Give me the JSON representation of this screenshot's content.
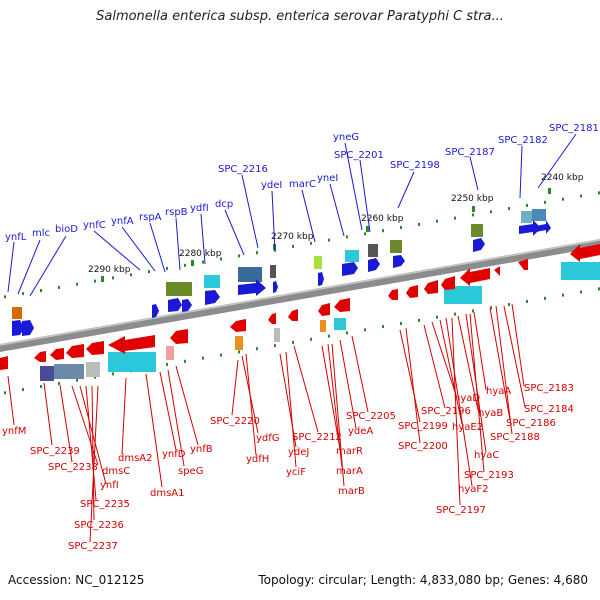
{
  "title": "Salmonella enterica subsp. enterica serovar Paratyphi C stra...",
  "footer": {
    "accession": "Accession: NC_012125",
    "summary": "Topology: circular; Length: 4,833,080 bp; Genes: 4,680"
  },
  "colors": {
    "plus_strand": "#1a1ad6",
    "minus_strand": "#e00000",
    "backbone": "#888888",
    "tick": "#2a8a2a"
  },
  "ticks": [
    "2240 kbp",
    "2250 kbp",
    "2260 kbp",
    "2270 kbp",
    "2280 kbp",
    "2290 kbp"
  ],
  "plus_genes": [
    "ynfL",
    "mlc",
    "bioD",
    "ynfC",
    "ynfA",
    "rspA",
    "rspB",
    "ydfI",
    "dcp",
    "SPC_2216",
    "ydeI",
    "marC",
    "yneI",
    "yneG",
    "SPC_2201",
    "SPC_2198",
    "SPC_2187",
    "SPC_2182",
    "SPC_2181"
  ],
  "minus_genes": [
    "ynfM",
    "SPC_2239",
    "SPC_2238",
    "dmsC",
    "ynfI",
    "SPC_2235",
    "SPC_2236",
    "SPC_2237",
    "dmsA2",
    "dmsA1",
    "ynfD",
    "speG",
    "ynfB",
    "SPC_2220",
    "ydfG",
    "ydfH",
    "ydeJ",
    "yciF",
    "SPC_2212",
    "marR",
    "marA",
    "marB",
    "ydeA",
    "SPC_2205",
    "SPC_2199",
    "SPC_2200",
    "SPC_2196",
    "hyaD",
    "hyaE2",
    "hyaF2",
    "SPC_2197",
    "hyaB",
    "hyaC",
    "SPC_2193",
    "hyaA",
    "SPC_2186",
    "SPC_2188",
    "SPC_2184",
    "SPC_2183"
  ]
}
